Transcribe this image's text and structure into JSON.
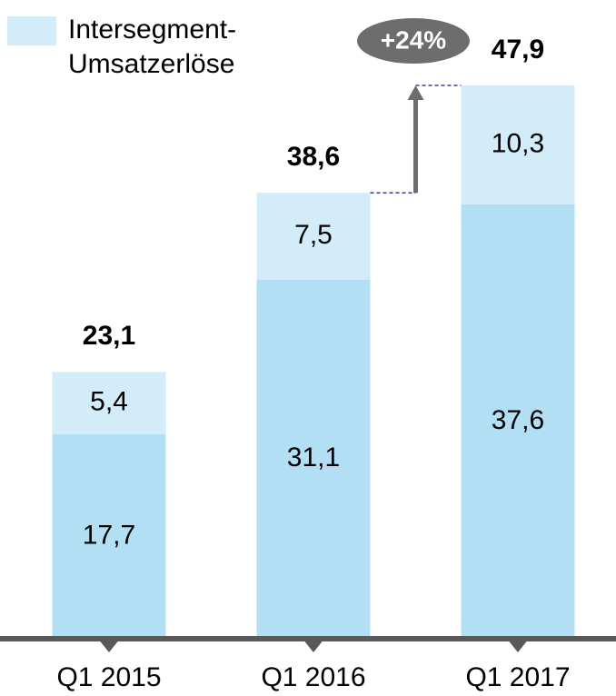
{
  "chart_data": {
    "type": "stacked_bar",
    "categories": [
      "Q1 2015",
      "Q1 2016",
      "Q1 2017"
    ],
    "series": [
      {
        "color": "#b3dff4",
        "values": [
          17.7,
          31.1,
          37.6
        ],
        "value_labels": [
          "17,7",
          "31,1",
          "37,6"
        ]
      },
      {
        "name": "Intersegment-Umsatzerlöse",
        "color": "#d3ecf9",
        "values": [
          5.4,
          7.5,
          10.3
        ],
        "value_labels": [
          "5,4",
          "7,5",
          "10,3"
        ]
      }
    ],
    "totals": [
      23.1,
      38.6,
      47.9
    ],
    "total_labels": [
      "23,1",
      "38,6",
      "47,9"
    ],
    "annotation": "+24%"
  }
}
